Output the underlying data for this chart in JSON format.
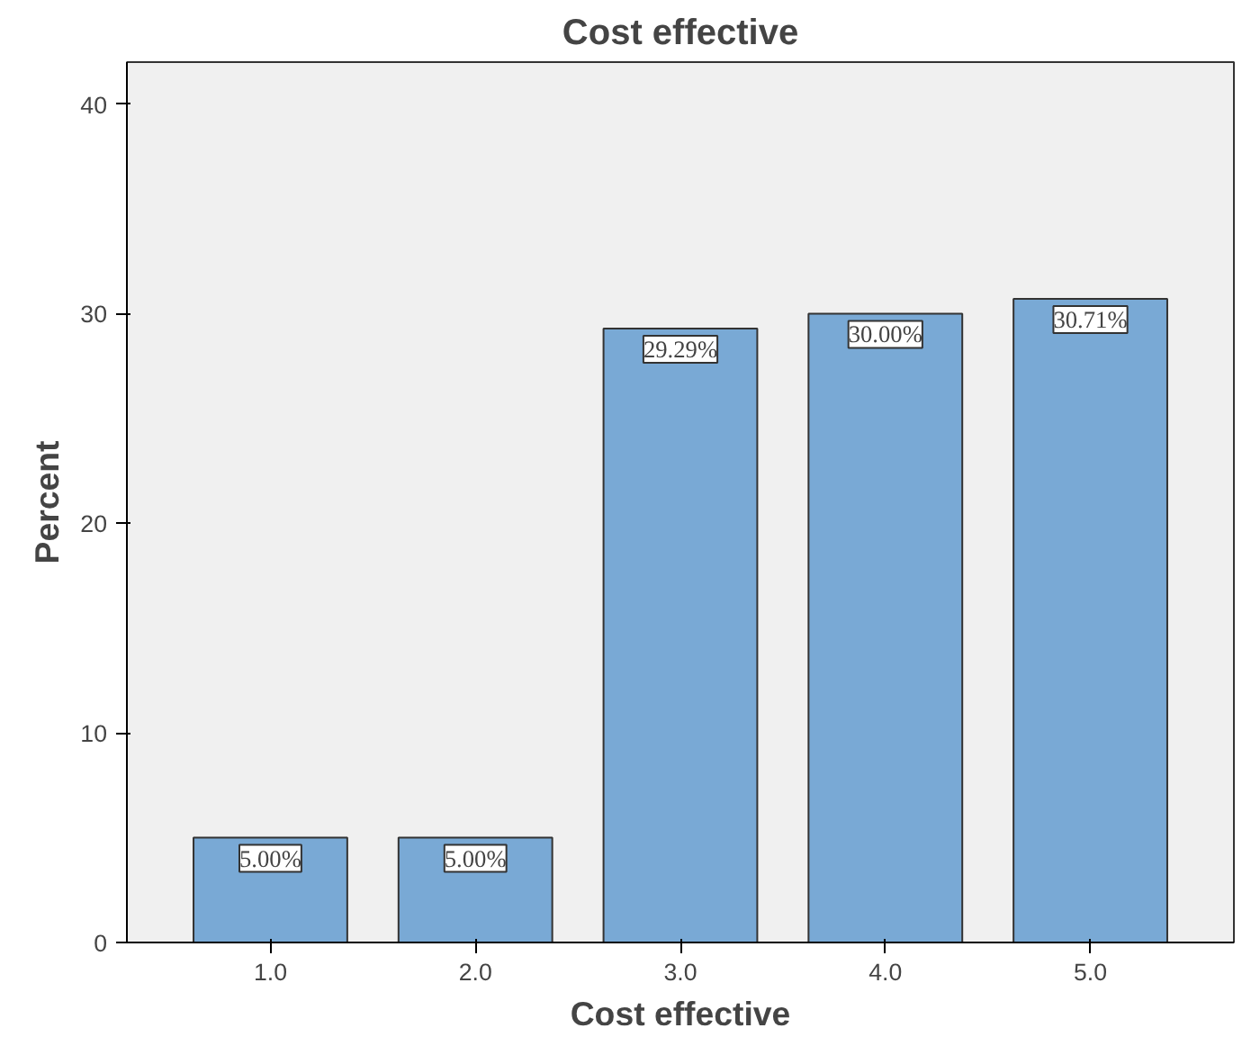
{
  "chart_data": {
    "type": "bar",
    "title": "Cost effective",
    "xlabel": "Cost effective",
    "ylabel": "Percent",
    "categories": [
      "1.0",
      "2.0",
      "3.0",
      "4.0",
      "5.0"
    ],
    "values": [
      5.0,
      5.0,
      29.29,
      30.0,
      30.71
    ],
    "value_labels": [
      "5.00%",
      "5.00%",
      "29.29%",
      "30.00%",
      "30.71%"
    ],
    "color": "#79a9d5",
    "ylim": [
      0,
      42
    ],
    "yticks": [
      0,
      10,
      20,
      30,
      40
    ],
    "grid": false
  }
}
